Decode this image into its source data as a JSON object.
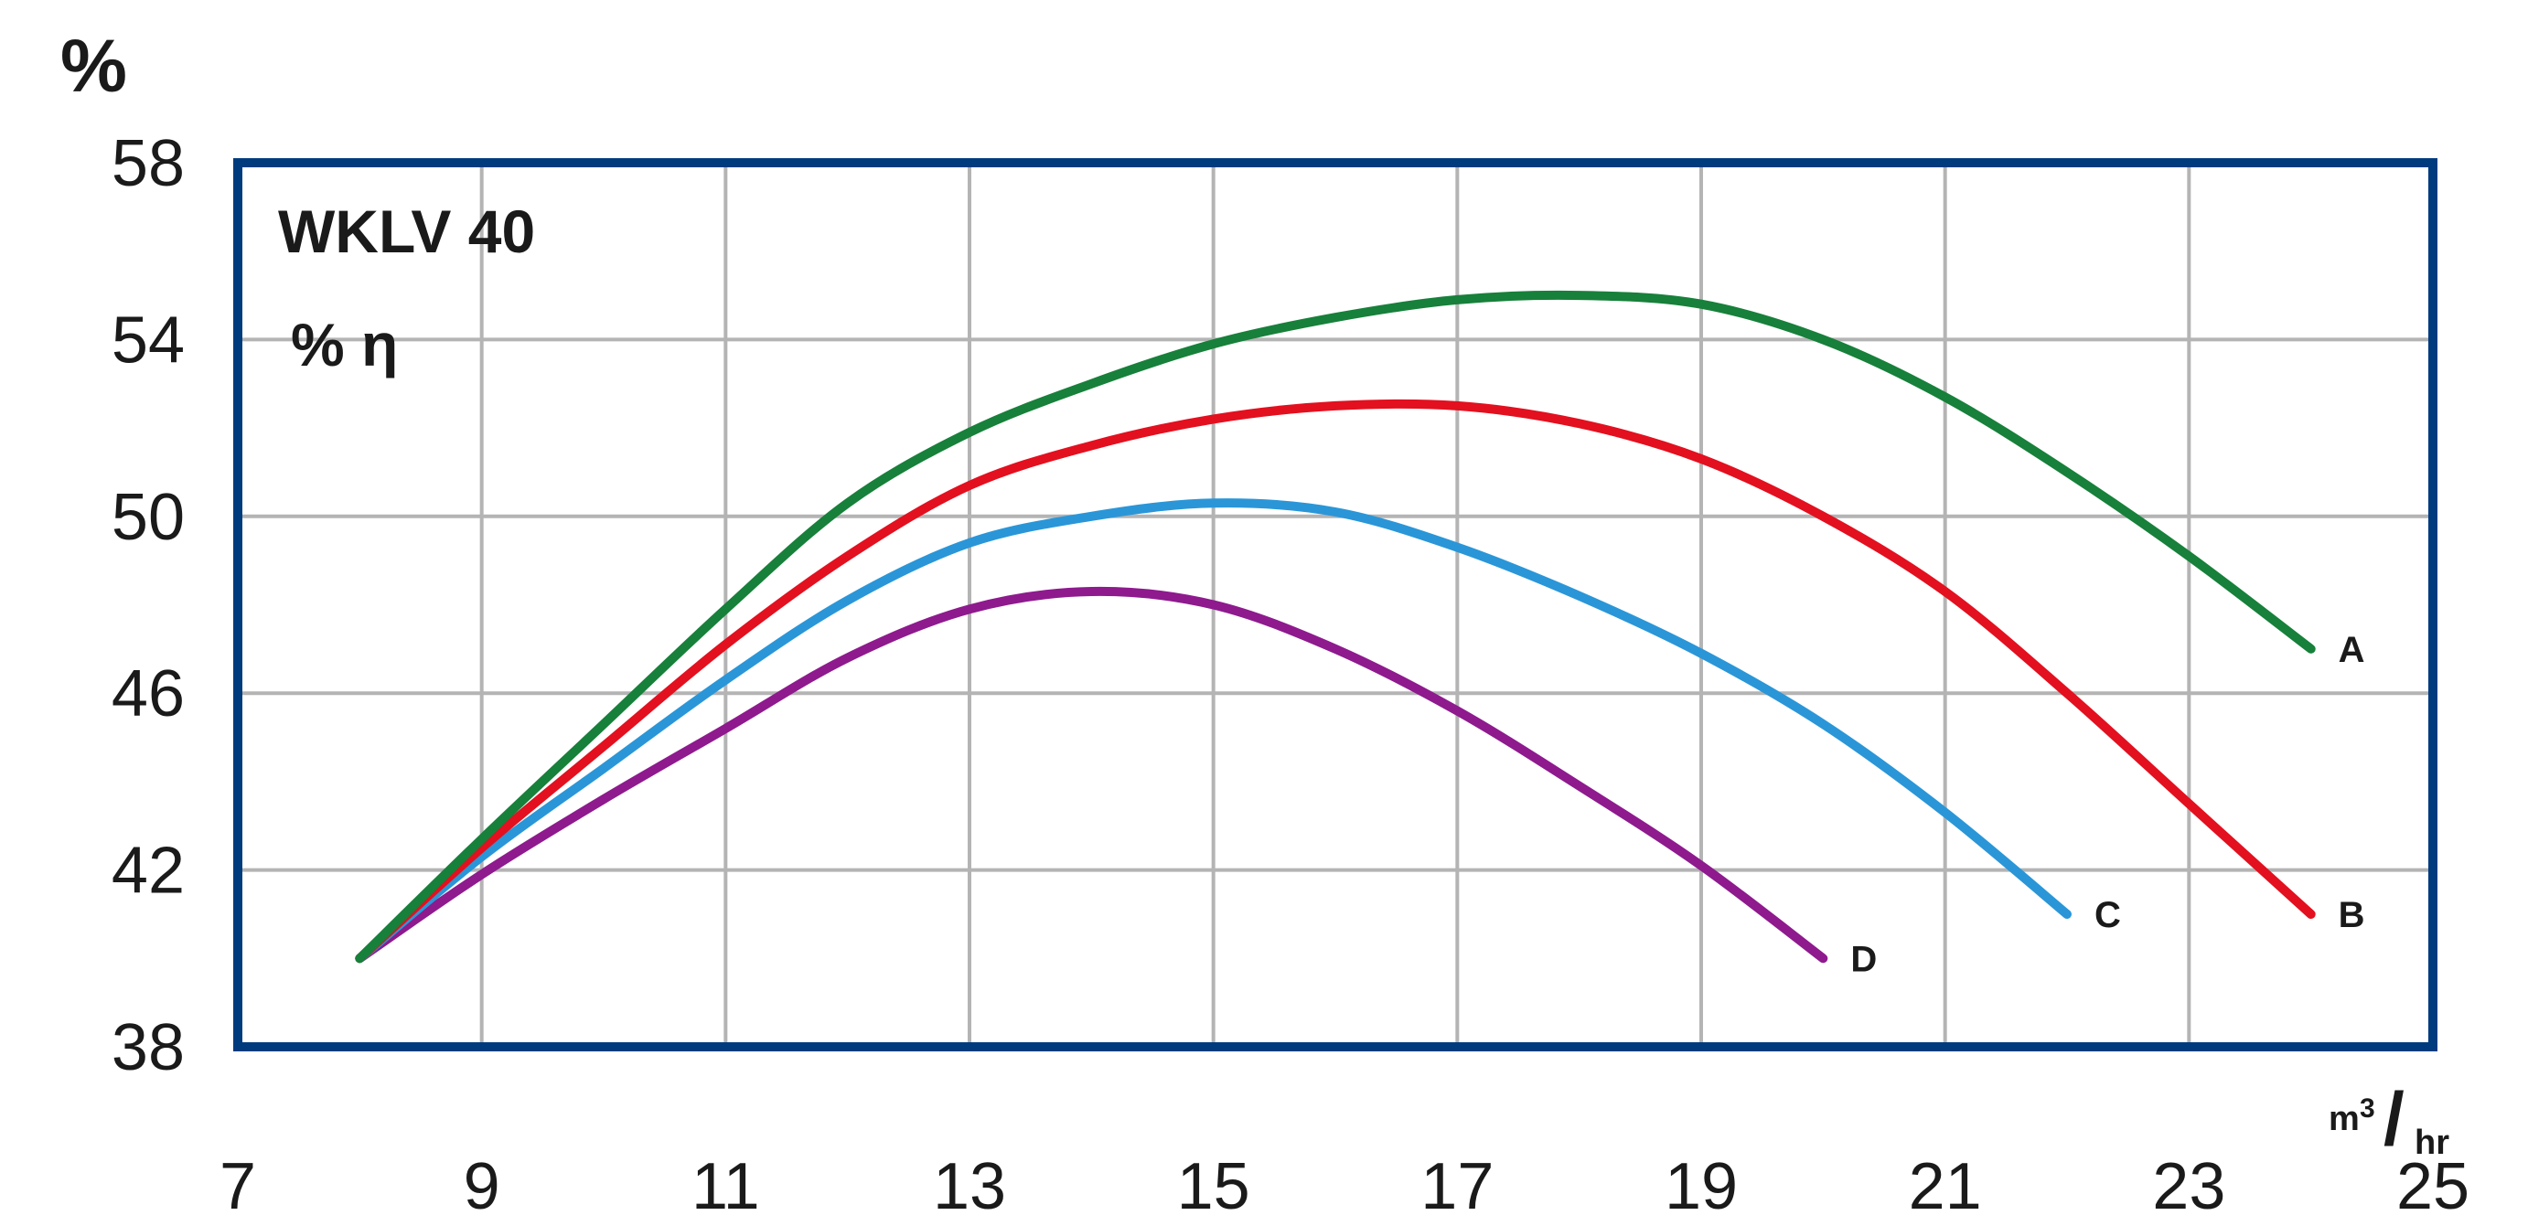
{
  "chart_data": {
    "type": "line",
    "title": "WKLV 40",
    "subtitle": "% η",
    "ylabel": "%",
    "xlabel_unit": {
      "base": "m",
      "sup": "3",
      "sep": "/",
      "sub": "hr"
    },
    "xlim": [
      7,
      25
    ],
    "ylim": [
      38,
      58
    ],
    "xticks": [
      "7",
      "9",
      "11",
      "13",
      "15",
      "17",
      "19",
      "21",
      "23",
      "25"
    ],
    "yticks": [
      "38",
      "42",
      "46",
      "50",
      "54",
      "58"
    ],
    "x_grid_values": [
      9,
      11,
      13,
      15,
      17,
      19,
      21,
      23
    ],
    "y_grid_values": [
      42,
      46,
      50,
      54
    ],
    "grid": true,
    "series": [
      {
        "name": "A",
        "color": "#17803a",
        "x": [
          8,
          9,
          10,
          11,
          12,
          13,
          14,
          15,
          16,
          17,
          18,
          19,
          20,
          21,
          22,
          23,
          24
        ],
        "y": [
          40,
          42.7,
          45.3,
          47.9,
          50.3,
          51.9,
          53.0,
          53.9,
          54.5,
          54.9,
          55.0,
          54.8,
          54.0,
          52.7,
          51.0,
          49.1,
          47.0
        ]
      },
      {
        "name": "B",
        "color": "#e3101f",
        "x": [
          8,
          9,
          10,
          11,
          12,
          13,
          14,
          15,
          16,
          17,
          18,
          19,
          20,
          21,
          22,
          23,
          24
        ],
        "y": [
          40,
          42.5,
          44.8,
          47.1,
          49.1,
          50.7,
          51.6,
          52.2,
          52.5,
          52.5,
          52.1,
          51.3,
          50.0,
          48.3,
          46.0,
          43.5,
          41.0
        ]
      },
      {
        "name": "C",
        "color": "#2a96d8",
        "x": [
          8,
          9,
          10,
          11,
          12,
          13,
          14,
          15,
          16,
          17,
          18,
          19,
          20,
          21,
          22
        ],
        "y": [
          40,
          42.3,
          44.3,
          46.3,
          48.1,
          49.4,
          50.0,
          50.3,
          50.1,
          49.3,
          48.2,
          46.9,
          45.3,
          43.3,
          41.0
        ]
      },
      {
        "name": "D",
        "color": "#8e1a8e",
        "x": [
          8,
          9,
          10,
          11,
          12,
          13,
          14,
          15,
          16,
          17,
          18,
          19,
          20
        ],
        "y": [
          40,
          41.9,
          43.6,
          45.2,
          46.8,
          47.9,
          48.3,
          48.0,
          47.0,
          45.6,
          43.9,
          42.1,
          40.0
        ]
      }
    ]
  }
}
